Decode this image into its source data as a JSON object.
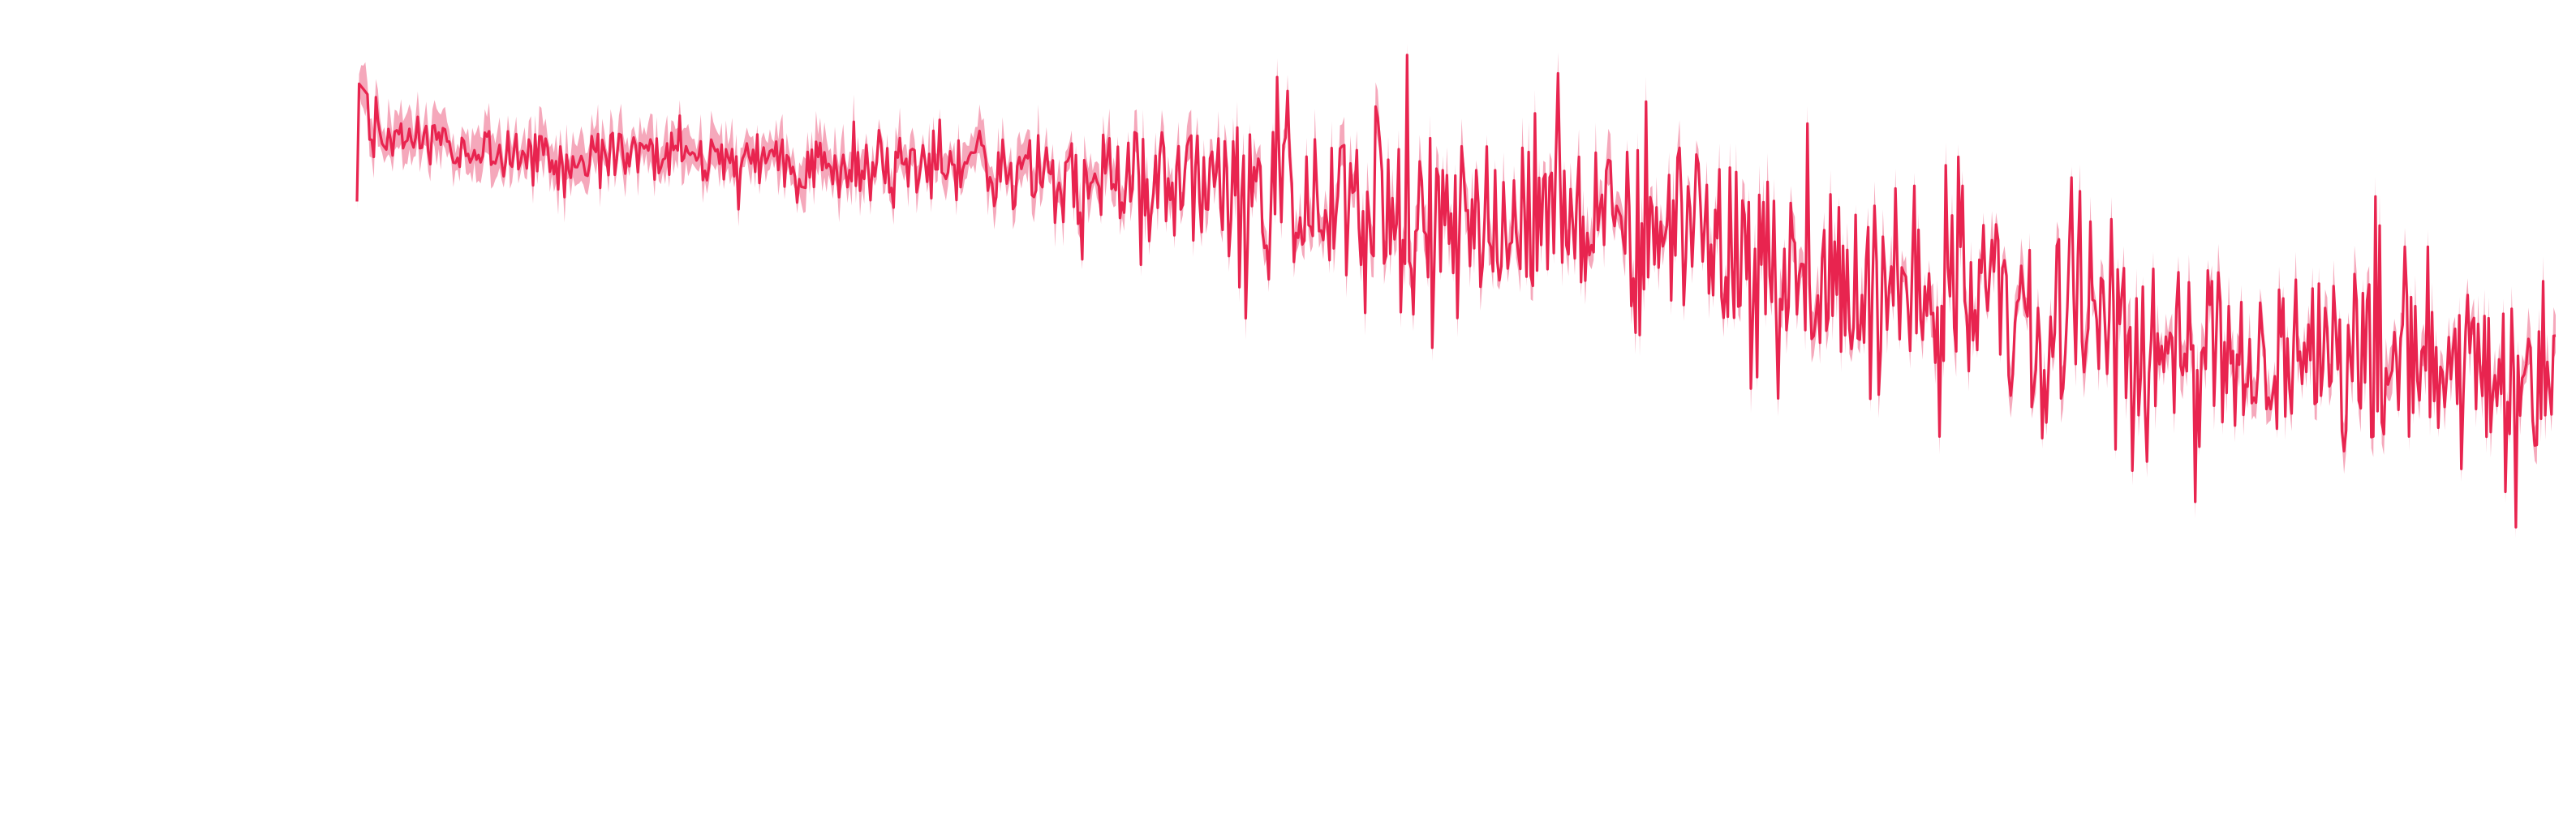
{
  "chart_data": {
    "type": "line",
    "title": "",
    "xlabel": "",
    "ylabel": "",
    "grid": false,
    "legend": "none",
    "axes_visible": false,
    "series": [
      {
        "color": "#e8244f",
        "band_color": "#f07a96",
        "point_count": 1050,
        "envelope": {
          "x_start": 0,
          "x_end": 1050,
          "start_value": 0.84,
          "end_value": 0.32,
          "knots": [
            {
              "x": 0,
              "value": 0.82
            },
            {
              "x": 150,
              "value": 0.78
            },
            {
              "x": 300,
              "value": 0.76
            },
            {
              "x": 450,
              "value": 0.7
            },
            {
              "x": 620,
              "value": 0.66
            },
            {
              "x": 700,
              "value": 0.58
            },
            {
              "x": 850,
              "value": 0.44
            },
            {
              "x": 1000,
              "value": 0.38
            },
            {
              "x": 1050,
              "value": 0.35
            }
          ],
          "volatility": [
            {
              "x": 0,
              "amplitude": 0.05
            },
            {
              "x": 250,
              "amplitude": 0.06
            },
            {
              "x": 450,
              "amplitude": 0.17
            },
            {
              "x": 700,
              "amplitude": 0.2
            },
            {
              "x": 1050,
              "amplitude": 0.18
            }
          ],
          "initial_peak": 0.93
        }
      }
    ],
    "ylim": [
      0,
      1
    ],
    "xlim": [
      0,
      1050
    ]
  }
}
